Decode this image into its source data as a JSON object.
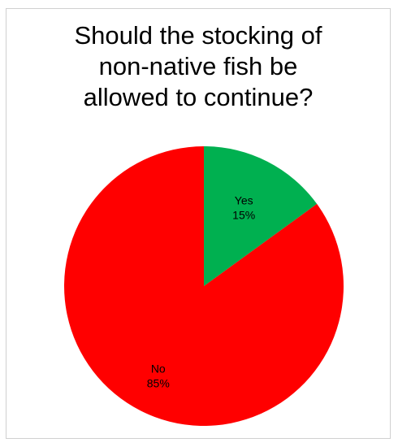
{
  "chart_data": {
    "type": "pie",
    "title_lines": [
      "Should the stocking of",
      "non-native fish be",
      "allowed to continue?"
    ],
    "slices": [
      {
        "name": "Yes",
        "value": 15,
        "label": "15%",
        "color": "#00b050"
      },
      {
        "name": "No",
        "value": 85,
        "label": "85%",
        "color": "#ff0000"
      }
    ],
    "start_angle_deg": 0,
    "direction": "clockwise",
    "legend": "none"
  }
}
